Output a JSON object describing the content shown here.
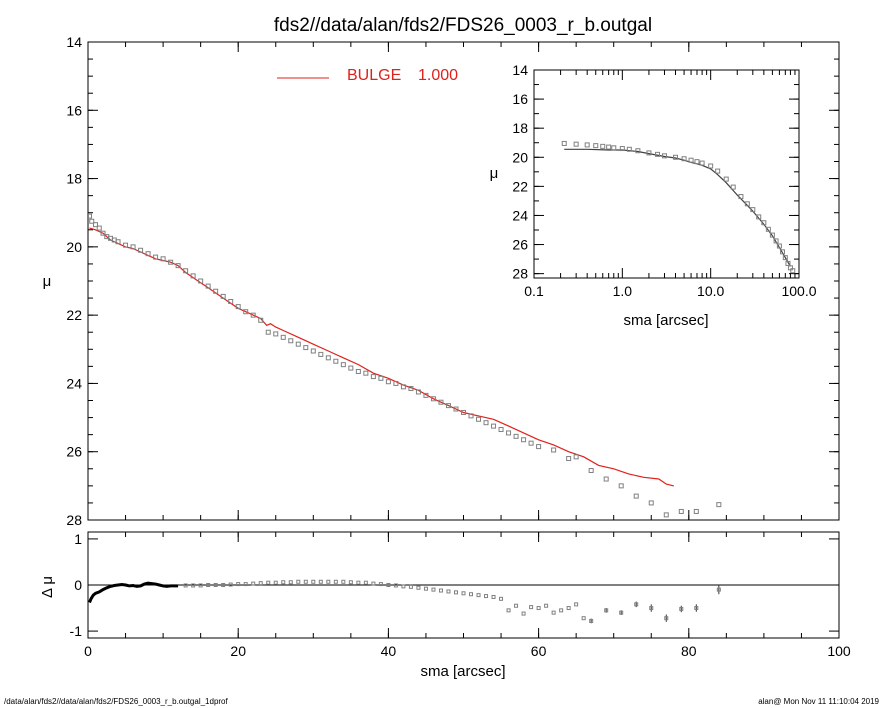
{
  "title": "fds2//data/alan/fds2/FDS26_0003_r_b.outgal",
  "footer": {
    "left": "/data/alan/fds2//data/alan/fds2/FDS26_0003_r_b.outgal_1dprof",
    "right": "alan@  Mon Nov 11 11:10:04 2019"
  },
  "colors": {
    "model": "#e0201b",
    "data": "#808080",
    "axes": "#000000"
  },
  "chart_data": [
    {
      "id": "main",
      "type": "scatter",
      "xlabel": "",
      "ylabel": "μ",
      "xlim": [
        0,
        100
      ],
      "ylim": [
        28,
        14
      ],
      "xticks": [
        0,
        20,
        40,
        60,
        80,
        100
      ],
      "yticks": [
        14,
        16,
        18,
        20,
        22,
        24,
        26,
        28
      ],
      "legend": {
        "label": "BULGE",
        "value": "1.000",
        "placement": "top-left"
      },
      "series": [
        {
          "name": "BULGE",
          "kind": "line",
          "color": "#e0201b",
          "x": [
            0.2,
            1,
            2,
            3,
            4,
            5,
            6,
            7,
            8,
            9,
            10,
            11,
            12,
            13,
            14,
            15,
            16,
            17,
            18,
            19,
            20,
            21,
            22,
            23,
            23.8,
            24.3,
            25,
            26,
            28,
            30,
            32,
            34,
            36,
            38,
            40,
            42,
            44,
            46,
            48,
            50,
            52,
            54,
            56,
            58,
            60,
            62,
            64,
            66,
            68,
            70,
            72,
            74,
            76,
            77,
            78
          ],
          "y": [
            19.45,
            19.5,
            19.6,
            19.8,
            19.9,
            20.0,
            20.05,
            20.15,
            20.25,
            20.35,
            20.4,
            20.45,
            20.55,
            20.75,
            20.9,
            21.05,
            21.2,
            21.35,
            21.5,
            21.65,
            21.8,
            21.9,
            22.0,
            22.1,
            22.3,
            22.25,
            22.35,
            22.45,
            22.65,
            22.85,
            23.05,
            23.25,
            23.45,
            23.7,
            23.85,
            24.05,
            24.2,
            24.45,
            24.65,
            24.85,
            24.95,
            25.05,
            25.25,
            25.45,
            25.65,
            25.8,
            26.0,
            26.15,
            26.4,
            26.5,
            26.65,
            26.75,
            26.8,
            26.95,
            27.0
          ]
        },
        {
          "name": "",
          "kind": "squares",
          "color": "#808080",
          "x": [
            0.2,
            0.5,
            1,
            1.5,
            2,
            2.5,
            3,
            3.5,
            4,
            5,
            6,
            7,
            8,
            9,
            10,
            11,
            12,
            13,
            14,
            15,
            16,
            17,
            18,
            19,
            20,
            21,
            22,
            23,
            24,
            25,
            26,
            27,
            28,
            29,
            30,
            31,
            32,
            33,
            34,
            35,
            36,
            37,
            38,
            39,
            40,
            41,
            42,
            43,
            44,
            45,
            46,
            47,
            48,
            49,
            50,
            51,
            52,
            53,
            54,
            55,
            56,
            57,
            58,
            59,
            60,
            62,
            64,
            65,
            67,
            69,
            71,
            73,
            75,
            77,
            79,
            81,
            84
          ],
          "y": [
            19.1,
            19.25,
            19.35,
            19.45,
            19.6,
            19.7,
            19.75,
            19.8,
            19.85,
            19.95,
            20.0,
            20.1,
            20.2,
            20.3,
            20.35,
            20.45,
            20.55,
            20.7,
            20.85,
            21.0,
            21.15,
            21.3,
            21.45,
            21.6,
            21.75,
            21.9,
            22.0,
            22.15,
            22.5,
            22.55,
            22.65,
            22.75,
            22.85,
            22.95,
            23.05,
            23.15,
            23.25,
            23.35,
            23.45,
            23.55,
            23.65,
            23.7,
            23.8,
            23.85,
            23.95,
            24.0,
            24.1,
            24.15,
            24.25,
            24.35,
            24.45,
            24.55,
            24.65,
            24.75,
            24.85,
            24.95,
            25.05,
            25.15,
            25.25,
            25.35,
            25.45,
            25.55,
            25.65,
            25.75,
            25.85,
            25.95,
            26.2,
            26.15,
            26.55,
            26.8,
            27.0,
            27.3,
            27.5,
            27.85,
            27.75,
            27.75,
            27.55
          ]
        }
      ]
    },
    {
      "id": "inset",
      "type": "scatter",
      "xscale": "log",
      "xlabel": "sma [arcsec]",
      "ylabel": "μ",
      "xlim": [
        0.1,
        100
      ],
      "ylim": [
        28.3,
        14
      ],
      "xticks": [
        0.1,
        1.0,
        10.0,
        100.0
      ],
      "xticklabels": [
        "0.1",
        "1.0",
        "10.0",
        "100.0"
      ],
      "yticks": [
        14,
        16,
        18,
        20,
        22,
        24,
        26,
        28
      ],
      "series": [
        {
          "name": "",
          "kind": "line",
          "color": "#404040",
          "x": [
            0.22,
            0.4,
            0.7,
            1.0,
            1.5,
            2.0,
            3.0,
            4.0,
            5.0,
            6.0,
            7.0,
            8.0,
            10.0,
            12.0,
            15.0,
            20.0,
            25.0,
            30.0,
            40.0,
            50.0,
            60.0,
            70.0,
            80.0
          ],
          "y": [
            19.45,
            19.45,
            19.5,
            19.5,
            19.6,
            19.75,
            19.95,
            20.05,
            20.2,
            20.35,
            20.45,
            20.55,
            20.8,
            21.2,
            21.75,
            22.6,
            23.2,
            23.7,
            24.6,
            25.4,
            26.2,
            26.9,
            27.5
          ]
        },
        {
          "name": "",
          "kind": "squares",
          "color": "#808080",
          "x": [
            0.22,
            0.3,
            0.4,
            0.5,
            0.6,
            0.7,
            0.8,
            1.0,
            1.2,
            1.5,
            2.0,
            2.5,
            3.0,
            4.0,
            5.0,
            6.0,
            7.0,
            8.0,
            10.0,
            12.0,
            15.0,
            18.0,
            22.0,
            26.0,
            30.0,
            35.0,
            40.0,
            45.0,
            50.0,
            55.0,
            60.0,
            65.0,
            70.0,
            75.0,
            80.0,
            85.0
          ],
          "y": [
            19.05,
            19.1,
            19.15,
            19.2,
            19.25,
            19.3,
            19.35,
            19.4,
            19.45,
            19.55,
            19.7,
            19.8,
            19.9,
            20.0,
            20.1,
            20.2,
            20.3,
            20.4,
            20.6,
            20.95,
            21.5,
            22.05,
            22.7,
            23.2,
            23.6,
            24.1,
            24.5,
            24.95,
            25.35,
            25.75,
            26.1,
            26.5,
            26.9,
            27.3,
            27.6,
            27.8
          ]
        }
      ]
    },
    {
      "id": "residual",
      "type": "scatter",
      "xlabel": "sma [arcsec]",
      "ylabel": "Δ μ",
      "xlim": [
        0,
        100
      ],
      "ylim": [
        -1.15,
        1.15
      ],
      "xticks": [
        0,
        20,
        40,
        60,
        80,
        100
      ],
      "yticks": [
        -1,
        0,
        1
      ],
      "zero_line": true,
      "series": [
        {
          "name": "",
          "kind": "thick",
          "color": "#000000",
          "x": [
            0.2,
            0.4,
            0.7,
            1.0,
            1.5,
            2.0,
            2.5,
            3.0,
            3.5,
            4.0,
            4.5,
            5.0,
            5.5,
            6.0,
            6.5,
            7.0,
            7.5,
            8.0,
            8.5,
            9.0,
            9.5,
            10.0,
            10.5,
            11.0,
            11.5,
            12.0
          ],
          "y": [
            -0.38,
            -0.3,
            -0.22,
            -0.18,
            -0.15,
            -0.1,
            -0.06,
            -0.03,
            -0.01,
            0.0,
            0.01,
            0.0,
            -0.02,
            -0.01,
            -0.03,
            -0.02,
            0.02,
            0.04,
            0.03,
            0.02,
            0.0,
            -0.02,
            -0.03,
            -0.02,
            -0.02,
            -0.02
          ]
        },
        {
          "name": "",
          "kind": "squares",
          "color": "#808080",
          "x": [
            13,
            14,
            15,
            16,
            17,
            18,
            19,
            20,
            21,
            22,
            23,
            24,
            25,
            26,
            27,
            28,
            29,
            30,
            31,
            32,
            33,
            34,
            35,
            36,
            37,
            38,
            39,
            40,
            41,
            42,
            43,
            44,
            45,
            46,
            47,
            48,
            49,
            50,
            51,
            52,
            53,
            54,
            55,
            56,
            57,
            58,
            59,
            60,
            61,
            62,
            63,
            64,
            65,
            66
          ],
          "y": [
            -0.01,
            -0.01,
            -0.01,
            0.0,
            0.0,
            0.0,
            0.01,
            0.02,
            0.02,
            0.03,
            0.04,
            0.05,
            0.05,
            0.06,
            0.06,
            0.07,
            0.07,
            0.07,
            0.07,
            0.07,
            0.07,
            0.07,
            0.06,
            0.05,
            0.05,
            0.03,
            0.02,
            0.0,
            -0.01,
            -0.03,
            -0.04,
            -0.06,
            -0.08,
            -0.1,
            -0.12,
            -0.14,
            -0.16,
            -0.18,
            -0.2,
            -0.22,
            -0.24,
            -0.26,
            -0.3,
            -0.55,
            -0.45,
            -0.62,
            -0.48,
            -0.5,
            -0.45,
            -0.6,
            -0.55,
            -0.5,
            -0.42,
            -0.72
          ]
        },
        {
          "name": "",
          "kind": "squares_err",
          "color": "#808080",
          "x": [
            67,
            69,
            71,
            73,
            75,
            77,
            79,
            81,
            84
          ],
          "y": [
            -0.78,
            -0.55,
            -0.6,
            -0.42,
            -0.5,
            -0.72,
            -0.52,
            -0.5,
            -0.1
          ],
          "err": [
            0.05,
            0.05,
            0.05,
            0.06,
            0.08,
            0.08,
            0.07,
            0.08,
            0.1
          ]
        }
      ]
    }
  ]
}
